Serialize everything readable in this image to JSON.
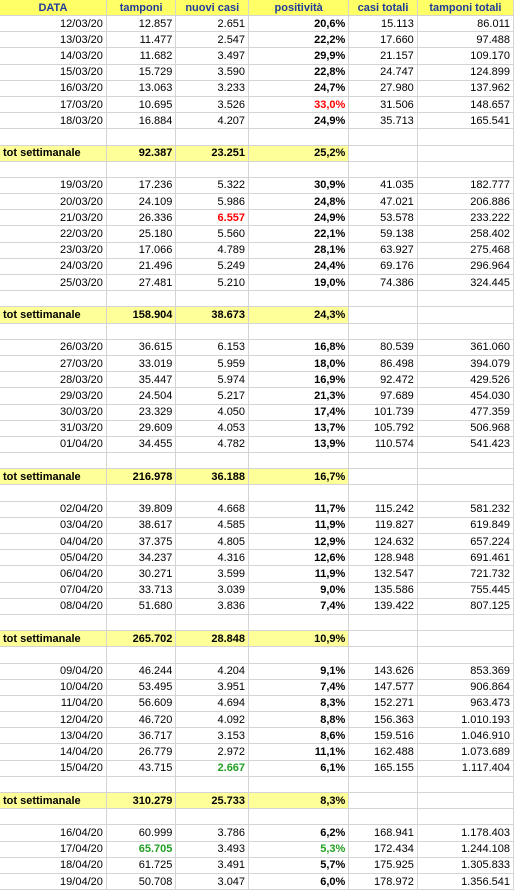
{
  "headers": [
    "DATA",
    "tamponi",
    "nuovi casi",
    "positività",
    "casi totali",
    "tamponi totali"
  ],
  "total_label": "tot settimanale",
  "rows": [
    {
      "type": "data",
      "cells": [
        "12/03/20",
        "12.857",
        "2.651",
        "20,6%",
        "15.113",
        "86.011"
      ]
    },
    {
      "type": "data",
      "cells": [
        "13/03/20",
        "11.477",
        "2.547",
        "22,2%",
        "17.660",
        "97.488"
      ]
    },
    {
      "type": "data",
      "cells": [
        "14/03/20",
        "11.682",
        "3.497",
        "29,9%",
        "21.157",
        "109.170"
      ]
    },
    {
      "type": "data",
      "cells": [
        "15/03/20",
        "15.729",
        "3.590",
        "22,8%",
        "24.747",
        "124.899"
      ]
    },
    {
      "type": "data",
      "cells": [
        "16/03/20",
        "13.063",
        "3.233",
        "24,7%",
        "27.980",
        "137.962"
      ]
    },
    {
      "type": "data",
      "cells": [
        "17/03/20",
        "10.695",
        "3.526",
        "33,0%",
        "31.506",
        "148.657"
      ],
      "highlight": {
        "col": 3,
        "color": "red"
      }
    },
    {
      "type": "data",
      "cells": [
        "18/03/20",
        "16.884",
        "4.207",
        "24,9%",
        "35.713",
        "165.541"
      ]
    },
    {
      "type": "blank"
    },
    {
      "type": "total",
      "cells": [
        "92.387",
        "23.251",
        "25,2%"
      ]
    },
    {
      "type": "blank"
    },
    {
      "type": "data",
      "cells": [
        "19/03/20",
        "17.236",
        "5.322",
        "30,9%",
        "41.035",
        "182.777"
      ]
    },
    {
      "type": "data",
      "cells": [
        "20/03/20",
        "24.109",
        "5.986",
        "24,8%",
        "47.021",
        "206.886"
      ]
    },
    {
      "type": "data",
      "cells": [
        "21/03/20",
        "26.336",
        "6.557",
        "24,9%",
        "53.578",
        "233.222"
      ],
      "highlight": {
        "col": 2,
        "color": "red"
      }
    },
    {
      "type": "data",
      "cells": [
        "22/03/20",
        "25.180",
        "5.560",
        "22,1%",
        "59.138",
        "258.402"
      ]
    },
    {
      "type": "data",
      "cells": [
        "23/03/20",
        "17.066",
        "4.789",
        "28,1%",
        "63.927",
        "275.468"
      ]
    },
    {
      "type": "data",
      "cells": [
        "24/03/20",
        "21.496",
        "5.249",
        "24,4%",
        "69.176",
        "296.964"
      ]
    },
    {
      "type": "data",
      "cells": [
        "25/03/20",
        "27.481",
        "5.210",
        "19,0%",
        "74.386",
        "324.445"
      ]
    },
    {
      "type": "blank"
    },
    {
      "type": "total",
      "cells": [
        "158.904",
        "38.673",
        "24,3%"
      ]
    },
    {
      "type": "blank"
    },
    {
      "type": "data",
      "cells": [
        "26/03/20",
        "36.615",
        "6.153",
        "16,8%",
        "80.539",
        "361.060"
      ]
    },
    {
      "type": "data",
      "cells": [
        "27/03/20",
        "33.019",
        "5.959",
        "18,0%",
        "86.498",
        "394.079"
      ]
    },
    {
      "type": "data",
      "cells": [
        "28/03/20",
        "35.447",
        "5.974",
        "16,9%",
        "92.472",
        "429.526"
      ]
    },
    {
      "type": "data",
      "cells": [
        "29/03/20",
        "24.504",
        "5.217",
        "21,3%",
        "97.689",
        "454.030"
      ]
    },
    {
      "type": "data",
      "cells": [
        "30/03/20",
        "23.329",
        "4.050",
        "17,4%",
        "101.739",
        "477.359"
      ]
    },
    {
      "type": "data",
      "cells": [
        "31/03/20",
        "29.609",
        "4.053",
        "13,7%",
        "105.792",
        "506.968"
      ]
    },
    {
      "type": "data",
      "cells": [
        "01/04/20",
        "34.455",
        "4.782",
        "13,9%",
        "110.574",
        "541.423"
      ]
    },
    {
      "type": "blank"
    },
    {
      "type": "total",
      "cells": [
        "216.978",
        "36.188",
        "16,7%"
      ]
    },
    {
      "type": "blank"
    },
    {
      "type": "data",
      "cells": [
        "02/04/20",
        "39.809",
        "4.668",
        "11,7%",
        "115.242",
        "581.232"
      ]
    },
    {
      "type": "data",
      "cells": [
        "03/04/20",
        "38.617",
        "4.585",
        "11,9%",
        "119.827",
        "619.849"
      ]
    },
    {
      "type": "data",
      "cells": [
        "04/04/20",
        "37.375",
        "4.805",
        "12,9%",
        "124.632",
        "657.224"
      ]
    },
    {
      "type": "data",
      "cells": [
        "05/04/20",
        "34.237",
        "4.316",
        "12,6%",
        "128.948",
        "691.461"
      ]
    },
    {
      "type": "data",
      "cells": [
        "06/04/20",
        "30.271",
        "3.599",
        "11,9%",
        "132.547",
        "721.732"
      ]
    },
    {
      "type": "data",
      "cells": [
        "07/04/20",
        "33.713",
        "3.039",
        "9,0%",
        "135.586",
        "755.445"
      ]
    },
    {
      "type": "data",
      "cells": [
        "08/04/20",
        "51.680",
        "3.836",
        "7,4%",
        "139.422",
        "807.125"
      ]
    },
    {
      "type": "blank"
    },
    {
      "type": "total",
      "cells": [
        "265.702",
        "28.848",
        "10,9%"
      ]
    },
    {
      "type": "blank"
    },
    {
      "type": "data",
      "cells": [
        "09/04/20",
        "46.244",
        "4.204",
        "9,1%",
        "143.626",
        "853.369"
      ]
    },
    {
      "type": "data",
      "cells": [
        "10/04/20",
        "53.495",
        "3.951",
        "7,4%",
        "147.577",
        "906.864"
      ]
    },
    {
      "type": "data",
      "cells": [
        "11/04/20",
        "56.609",
        "4.694",
        "8,3%",
        "152.271",
        "963.473"
      ]
    },
    {
      "type": "data",
      "cells": [
        "12/04/20",
        "46.720",
        "4.092",
        "8,8%",
        "156.363",
        "1.010.193"
      ]
    },
    {
      "type": "data",
      "cells": [
        "13/04/20",
        "36.717",
        "3.153",
        "8,6%",
        "159.516",
        "1.046.910"
      ]
    },
    {
      "type": "data",
      "cells": [
        "14/04/20",
        "26.779",
        "2.972",
        "11,1%",
        "162.488",
        "1.073.689"
      ]
    },
    {
      "type": "data",
      "cells": [
        "15/04/20",
        "43.715",
        "2.667",
        "6,1%",
        "165.155",
        "1.117.404"
      ],
      "highlight": {
        "col": 2,
        "color": "green"
      }
    },
    {
      "type": "blank"
    },
    {
      "type": "total",
      "cells": [
        "310.279",
        "25.733",
        "8,3%"
      ]
    },
    {
      "type": "blank"
    },
    {
      "type": "data",
      "cells": [
        "16/04/20",
        "60.999",
        "3.786",
        "6,2%",
        "168.941",
        "1.178.403"
      ]
    },
    {
      "type": "data",
      "cells": [
        "17/04/20",
        "65.705",
        "3.493",
        "5,3%",
        "172.434",
        "1.244.108"
      ],
      "highlights": [
        {
          "col": 1,
          "color": "green"
        },
        {
          "col": 3,
          "color": "green"
        }
      ]
    },
    {
      "type": "data",
      "cells": [
        "18/04/20",
        "61.725",
        "3.491",
        "5,7%",
        "175.925",
        "1.305.833"
      ]
    },
    {
      "type": "data",
      "cells": [
        "19/04/20",
        "50.708",
        "3.047",
        "6,0%",
        "178.972",
        "1.356.541"
      ]
    }
  ]
}
